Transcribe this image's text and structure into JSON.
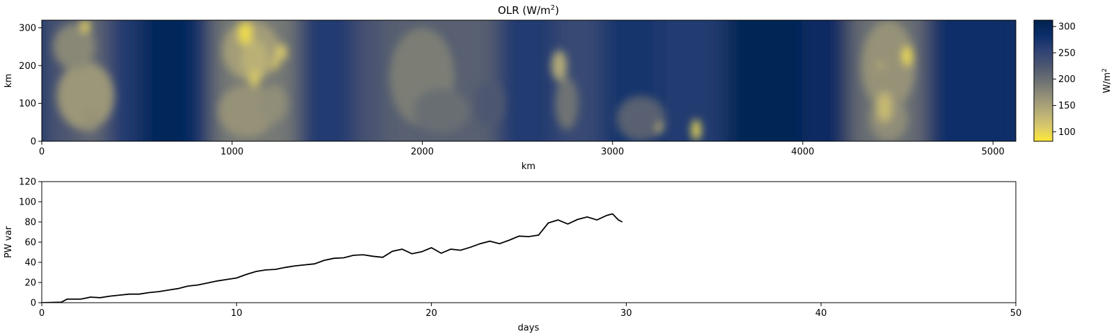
{
  "chart_data": [
    {
      "type": "heatmap",
      "title": "OLR (W/m",
      "title_sup": "2",
      "title_close": ")",
      "xlabel": "km",
      "ylabel": "km",
      "xlim": [
        0,
        5120
      ],
      "ylim": [
        0,
        320
      ],
      "xticks": [
        0,
        1000,
        2000,
        3000,
        4000,
        5000
      ],
      "yticks": [
        0,
        100,
        200,
        300
      ],
      "colormap": "cividis_r",
      "colorbar": {
        "label": "W/m",
        "label_sup": "2",
        "range": [
          82,
          312
        ],
        "ticks": [
          100,
          150,
          200,
          250,
          300
        ],
        "colors": [
          "#fde838",
          "#d8c86c",
          "#b5ab78",
          "#928f78",
          "#6c7173",
          "#4c5670",
          "#2f4274",
          "#0b2e6a",
          "#00224e"
        ]
      },
      "background_bands": [
        {
          "x_start": 0,
          "x_end": 180,
          "value": 230
        },
        {
          "x_start": 180,
          "x_end": 350,
          "value": 210
        },
        {
          "x_start": 350,
          "x_end": 520,
          "value": 265
        },
        {
          "x_start": 520,
          "x_end": 800,
          "value": 300
        },
        {
          "x_start": 800,
          "x_end": 900,
          "value": 275
        },
        {
          "x_start": 900,
          "x_end": 1350,
          "value": 190
        },
        {
          "x_start": 1350,
          "x_end": 1650,
          "value": 265
        },
        {
          "x_start": 1650,
          "x_end": 1800,
          "value": 230
        },
        {
          "x_start": 1800,
          "x_end": 2400,
          "value": 215
        },
        {
          "x_start": 2400,
          "x_end": 2700,
          "value": 265
        },
        {
          "x_start": 2700,
          "x_end": 2950,
          "value": 245
        },
        {
          "x_start": 2950,
          "x_end": 3250,
          "value": 275
        },
        {
          "x_start": 3250,
          "x_end": 3600,
          "value": 265
        },
        {
          "x_start": 3600,
          "x_end": 4000,
          "value": 305
        },
        {
          "x_start": 4000,
          "x_end": 4250,
          "value": 290
        },
        {
          "x_start": 4250,
          "x_end": 4650,
          "value": 200
        },
        {
          "x_start": 4650,
          "x_end": 5120,
          "value": 285
        }
      ],
      "features": [
        {
          "x": 230,
          "y": 120,
          "rx": 150,
          "ry": 90,
          "value": 160
        },
        {
          "x": 170,
          "y": 250,
          "rx": 110,
          "ry": 60,
          "value": 175
        },
        {
          "x": 230,
          "y": 305,
          "rx": 25,
          "ry": 18,
          "value": 105
        },
        {
          "x": 260,
          "y": 55,
          "rx": 40,
          "ry": 30,
          "value": 165
        },
        {
          "x": 1100,
          "y": 240,
          "rx": 150,
          "ry": 80,
          "value": 155
        },
        {
          "x": 1080,
          "y": 80,
          "rx": 150,
          "ry": 70,
          "value": 165
        },
        {
          "x": 1070,
          "y": 285,
          "rx": 35,
          "ry": 32,
          "value": 92
        },
        {
          "x": 1120,
          "y": 215,
          "rx": 70,
          "ry": 55,
          "value": 135
        },
        {
          "x": 1120,
          "y": 165,
          "rx": 25,
          "ry": 20,
          "value": 105
        },
        {
          "x": 1260,
          "y": 235,
          "rx": 28,
          "ry": 22,
          "value": 110
        },
        {
          "x": 1230,
          "y": 205,
          "rx": 16,
          "ry": 16,
          "value": 105
        },
        {
          "x": 1220,
          "y": 100,
          "rx": 70,
          "ry": 50,
          "value": 170
        },
        {
          "x": 2000,
          "y": 170,
          "rx": 170,
          "ry": 130,
          "value": 185
        },
        {
          "x": 2100,
          "y": 80,
          "rx": 150,
          "ry": 60,
          "value": 200
        },
        {
          "x": 2350,
          "y": 100,
          "rx": 80,
          "ry": 60,
          "value": 225
        },
        {
          "x": 2720,
          "y": 200,
          "rx": 40,
          "ry": 40,
          "value": 140
        },
        {
          "x": 2760,
          "y": 100,
          "rx": 60,
          "ry": 70,
          "value": 195
        },
        {
          "x": 3150,
          "y": 60,
          "rx": 130,
          "ry": 60,
          "value": 215
        },
        {
          "x": 3250,
          "y": 35,
          "rx": 14,
          "ry": 14,
          "value": 125
        },
        {
          "x": 3440,
          "y": 30,
          "rx": 25,
          "ry": 28,
          "value": 100
        },
        {
          "x": 4450,
          "y": 200,
          "rx": 140,
          "ry": 120,
          "value": 165
        },
        {
          "x": 4450,
          "y": 60,
          "rx": 100,
          "ry": 60,
          "value": 170
        },
        {
          "x": 4430,
          "y": 90,
          "rx": 40,
          "ry": 40,
          "value": 125
        },
        {
          "x": 4550,
          "y": 225,
          "rx": 25,
          "ry": 25,
          "value": 95
        },
        {
          "x": 4410,
          "y": 200,
          "rx": 10,
          "ry": 10,
          "value": 120
        }
      ]
    },
    {
      "type": "line",
      "title": "",
      "xlabel": "days",
      "ylabel": "PW var",
      "xlim": [
        0,
        50
      ],
      "ylim": [
        0,
        120
      ],
      "xticks": [
        0,
        10,
        20,
        30,
        40,
        50
      ],
      "yticks": [
        0,
        20,
        40,
        60,
        80,
        100,
        120
      ],
      "color": "#000000",
      "x": [
        0,
        1.0,
        1.3,
        2.0,
        2.5,
        3.0,
        3.5,
        4.0,
        4.5,
        5.0,
        5.5,
        6.0,
        6.5,
        7.0,
        7.5,
        8.0,
        8.5,
        9.0,
        9.5,
        10.0,
        10.5,
        11.0,
        11.5,
        12.0,
        12.5,
        13.0,
        13.5,
        14.0,
        14.5,
        15.0,
        15.5,
        16.0,
        16.5,
        17.0,
        17.5,
        18.0,
        18.5,
        19.0,
        19.5,
        20.0,
        20.5,
        21.0,
        21.5,
        22.0,
        22.5,
        23.0,
        23.5,
        24.0,
        24.5,
        25.0,
        25.5,
        26.0,
        26.5,
        27.0,
        27.5,
        28.0,
        28.5,
        29.0,
        29.3,
        29.6,
        29.8
      ],
      "y": [
        0,
        0.5,
        3.5,
        3.5,
        5.5,
        5.0,
        6.5,
        7.5,
        8.5,
        8.5,
        10.0,
        11.0,
        12.5,
        14.0,
        16.5,
        17.5,
        19.5,
        21.5,
        23.0,
        24.5,
        28.0,
        31.0,
        32.5,
        33.0,
        35.0,
        36.5,
        37.5,
        38.5,
        42.0,
        44.0,
        44.5,
        47.0,
        47.5,
        46.0,
        45.0,
        51.0,
        53.0,
        48.5,
        50.5,
        54.5,
        49.0,
        53.0,
        52.0,
        55.0,
        58.5,
        61.0,
        58.5,
        62.0,
        66.0,
        65.5,
        67.0,
        79.0,
        82.0,
        78.0,
        82.5,
        85.0,
        82.0,
        86.5,
        88.0,
        82.0,
        80.0
      ]
    }
  ]
}
